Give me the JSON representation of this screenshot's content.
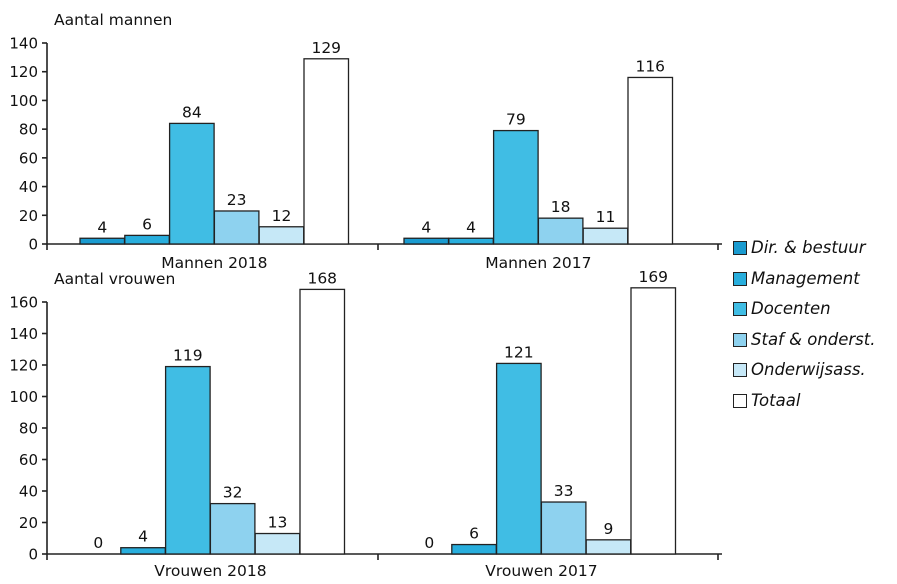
{
  "colors": {
    "dir_bestuur": "#1a9bd0",
    "management": "#28aedd",
    "docenten": "#40bde4",
    "staf": "#8ed2ef",
    "onderwijsass": "#c6e8f7",
    "totaal": "#ffffff",
    "stroke": "#222222"
  },
  "legend": [
    {
      "label": "Dir. & bestuur",
      "color_key": "dir_bestuur"
    },
    {
      "label": "Management",
      "color_key": "management"
    },
    {
      "label": "Docenten",
      "color_key": "docenten"
    },
    {
      "label": "Staf & onderst.",
      "color_key": "staf"
    },
    {
      "label": "Onderwijsass.",
      "color_key": "onderwijsass"
    },
    {
      "label": "Totaal",
      "color_key": "totaal"
    }
  ],
  "chart_data": [
    {
      "type": "bar",
      "ylabel": "Aantal mannen",
      "ylim": [
        0,
        140
      ],
      "yticks": [
        "0",
        "20",
        "40",
        "60",
        "80",
        "100",
        "120",
        "140"
      ],
      "categories": [
        "Dir. & bestuur",
        "Management",
        "Docenten",
        "Staf & onderst.",
        "Onderwijsass.",
        "Totaal"
      ],
      "groups": [
        {
          "label": "Mannen 2018",
          "values": [
            4,
            6,
            84,
            23,
            12,
            129
          ]
        },
        {
          "label": "Mannen 2017",
          "values": [
            4,
            4,
            79,
            18,
            11,
            116
          ]
        }
      ]
    },
    {
      "type": "bar",
      "ylabel": "Aantal vrouwen",
      "ylim": [
        0,
        160
      ],
      "yticks": [
        "0",
        "20",
        "40",
        "60",
        "80",
        "100",
        "120",
        "140",
        "160"
      ],
      "categories": [
        "Dir. & bestuur",
        "Management",
        "Docenten",
        "Staf & onderst.",
        "Onderwijsass.",
        "Totaal"
      ],
      "groups": [
        {
          "label": "Vrouwen 2018",
          "values": [
            0,
            4,
            119,
            32,
            13,
            168
          ]
        },
        {
          "label": "Vrouwen 2017",
          "values": [
            0,
            6,
            121,
            33,
            9,
            169
          ]
        }
      ]
    }
  ]
}
